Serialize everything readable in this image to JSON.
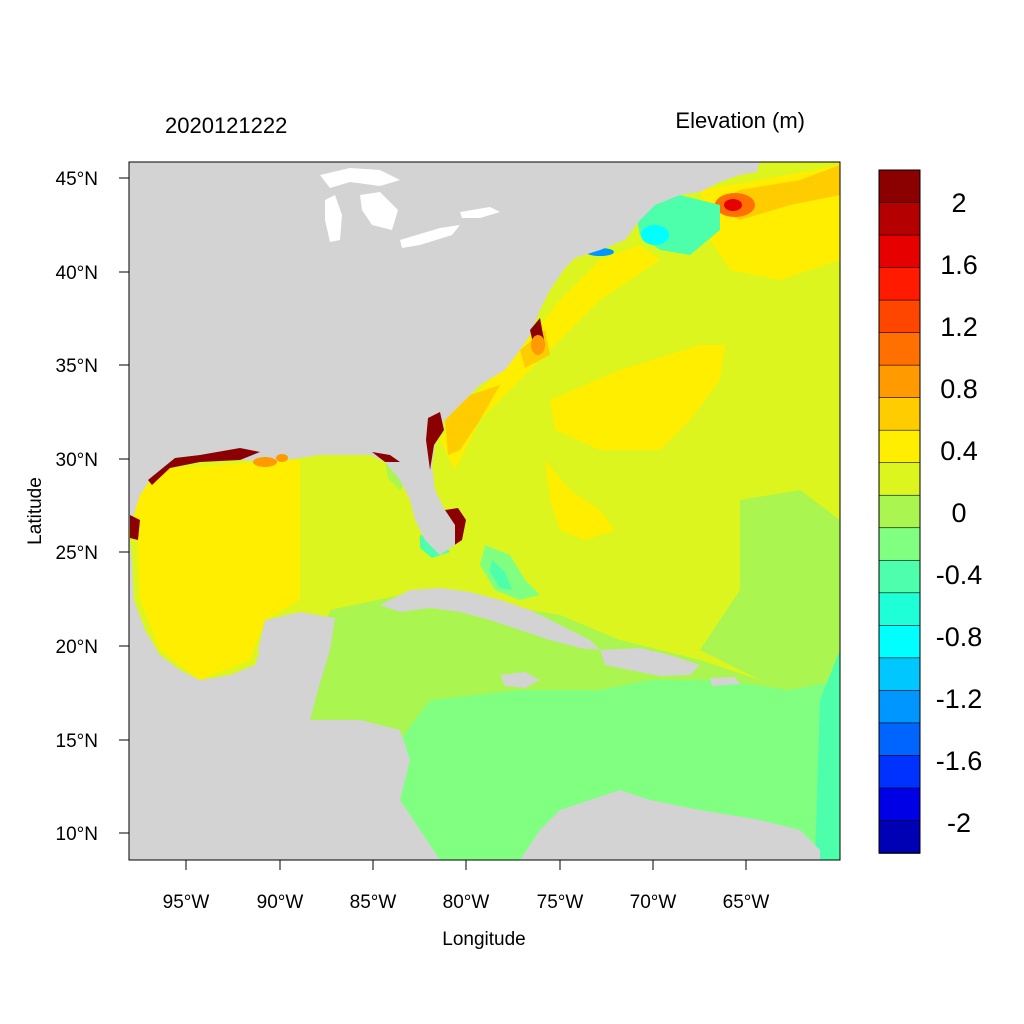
{
  "plot": {
    "left_title": "2020121222",
    "right_title": "Elevation (m)",
    "xlabel": "Longitude",
    "ylabel": "Latitude",
    "x_ticks": [
      "95°W",
      "90°W",
      "85°W",
      "80°W",
      "75°W",
      "70°W",
      "65°W"
    ],
    "y_ticks": [
      "45°N",
      "40°N",
      "35°N",
      "30°N",
      "25°N",
      "20°N",
      "15°N",
      "10°N"
    ]
  },
  "colorbar": {
    "labels": [
      "2",
      "1.6",
      "1.2",
      "0.8",
      "0.4",
      "0",
      "-0.4",
      "-0.8",
      "-1.2",
      "-1.6",
      "-2"
    ],
    "colors": [
      "#8b0000",
      "#b40000",
      "#e60000",
      "#ff1a00",
      "#ff4600",
      "#ff7000",
      "#ff9a00",
      "#ffcc00",
      "#ffee00",
      "#dcf51e",
      "#aaf550",
      "#80ff80",
      "#4dffaa",
      "#1effd7",
      "#00ffff",
      "#00c8ff",
      "#0096ff",
      "#0064ff",
      "#0032ff",
      "#0000e6",
      "#0000b4"
    ]
  },
  "map": {
    "land_color": "#d3d3d3",
    "lake_color": "#ffffff",
    "extent": {
      "lon": [
        -98,
        -60
      ],
      "lat": [
        8.5,
        46
      ]
    }
  }
}
